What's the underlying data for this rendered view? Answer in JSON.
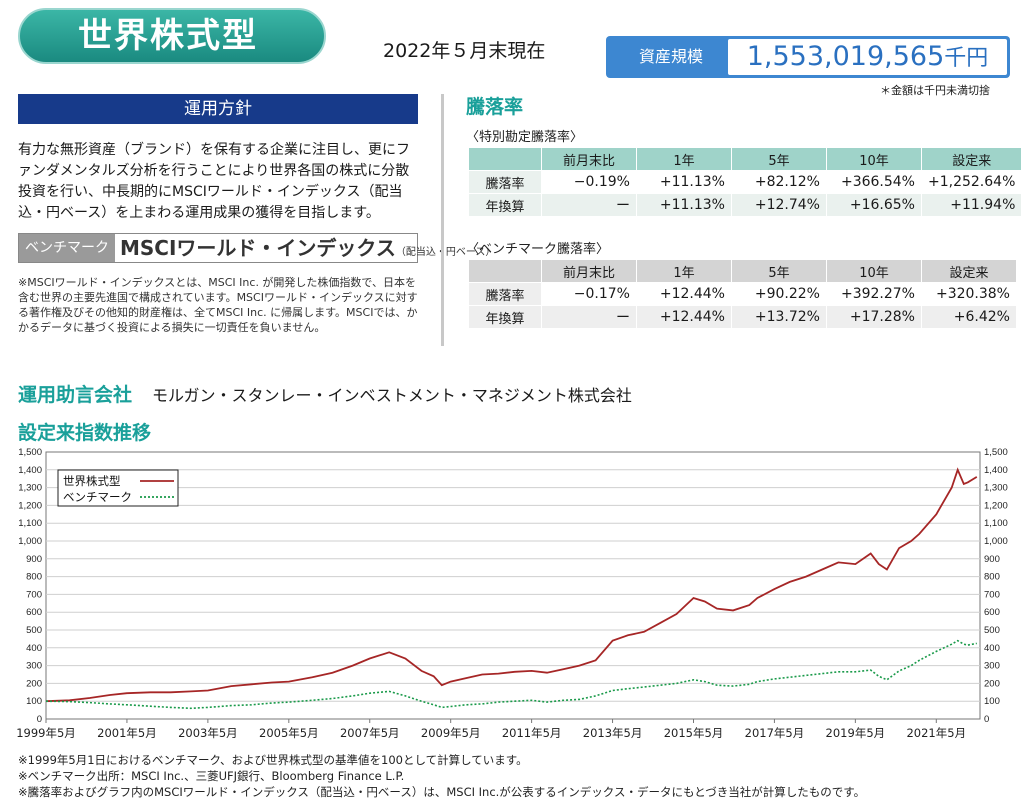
{
  "fund_name": "世界株式型",
  "as_of": "2022年５月末現在",
  "assets": {
    "label": "資産規模",
    "value": "1,553,019,565",
    "unit": "千円",
    "note": "＊金額は千円未満切捨"
  },
  "policy": {
    "title": "運用方針",
    "text": "有力な無形資産（ブランド）を保有する企業に注目し、更にファンダメンタルズ分析を行うことにより世界各国の株式に分散投資を行い、中長期的にMSCIワールド・インデックス（配当込・円ベース）を上まわる運用成果の獲得を目指します。",
    "bench_label": "ベンチマーク",
    "bench_name": "MSCIワールド・インデックス",
    "bench_sub": "（配当込・円ベース）",
    "msci_note": "※MSCIワールド・インデックスとは、MSCI Inc. が開発した株価指数で、日本を含む世界の主要先進国で構成されています。MSCIワールド・インデックスに対する著作権及びその他知的財産権は、全てMSCI Inc. に帰属します。MSCIでは、かかるデータに基づく投資による損失に一切責任を負いません。"
  },
  "performance": {
    "title": "騰落率",
    "headers": [
      "",
      "前月末比",
      "1年",
      "5年",
      "10年",
      "設定来"
    ],
    "fund": {
      "subtitle": "〈特別勘定騰落率〉",
      "rows": [
        [
          "騰落率",
          "−0.19%",
          "+11.13%",
          "+82.12%",
          "+366.54%",
          "+1,252.64%"
        ],
        [
          "年換算",
          "ー",
          "+11.13%",
          "+12.74%",
          "+16.65%",
          "+11.94%"
        ]
      ]
    },
    "bench": {
      "subtitle": "〈ベンチマーク騰落率〉",
      "rows": [
        [
          "騰落率",
          "−0.17%",
          "+12.44%",
          "+90.22%",
          "+392.27%",
          "+320.38%"
        ],
        [
          "年換算",
          "ー",
          "+12.44%",
          "+13.72%",
          "+17.28%",
          "+6.42%"
        ]
      ]
    }
  },
  "advisor": {
    "label": "運用助言会社",
    "name": "モルガン・スタンレー・インベストメント・マネジメント株式会社"
  },
  "chart_title": "設定来指数推移",
  "colors": {
    "fund": "#a62626",
    "bench": "#1a9a4a",
    "teal": "#1aa09a",
    "navy": "#173a8a",
    "blue": "#3d87d1",
    "head_teal": "#9fd3c9",
    "header_gray": "#d4d4d4",
    "row_bg": "#eaf1ee",
    "row_bg2": "#eeeeee"
  },
  "chart_data": {
    "type": "line",
    "title": "設定来指数推移",
    "xlabel": "",
    "ylabel": "",
    "x_ticks": [
      "1999年5月",
      "2001年5月",
      "2003年5月",
      "2005年5月",
      "2007年5月",
      "2009年5月",
      "2011年5月",
      "2013年5月",
      "2015年5月",
      "2017年5月",
      "2019年5月",
      "2021年5月"
    ],
    "y_ticks": [
      "0",
      "100",
      "200",
      "300",
      "400",
      "500",
      "600",
      "700",
      "800",
      "900",
      "1,000",
      "1,100",
      "1,200",
      "1,300",
      "1,400",
      "1,500"
    ],
    "ylim": [
      0,
      1500
    ],
    "grid": true,
    "legend_position": "top-left",
    "series": [
      {
        "name": "世界株式型",
        "x": [
          1999.42,
          2000.0,
          2000.5,
          2001.0,
          2001.42,
          2002.0,
          2002.5,
          2003.0,
          2003.42,
          2004.0,
          2004.5,
          2005.0,
          2005.42,
          2006.0,
          2006.5,
          2007.0,
          2007.42,
          2007.9,
          2008.3,
          2008.7,
          2009.0,
          2009.2,
          2009.42,
          2009.8,
          2010.2,
          2010.6,
          2011.0,
          2011.42,
          2011.8,
          2012.2,
          2012.6,
          2013.0,
          2013.42,
          2013.8,
          2014.2,
          2014.6,
          2015.0,
          2015.42,
          2015.7,
          2016.0,
          2016.4,
          2016.8,
          2017.0,
          2017.42,
          2017.8,
          2018.2,
          2018.6,
          2019.0,
          2019.42,
          2019.8,
          2020.0,
          2020.2,
          2020.5,
          2020.8,
          2021.0,
          2021.42,
          2021.8,
          2021.95,
          2022.1,
          2022.2,
          2022.42
        ],
        "y": [
          100,
          105,
          118,
          135,
          145,
          150,
          150,
          155,
          160,
          185,
          195,
          205,
          210,
          235,
          260,
          300,
          340,
          375,
          340,
          270,
          240,
          190,
          210,
          230,
          250,
          255,
          265,
          270,
          260,
          280,
          300,
          330,
          440,
          470,
          490,
          540,
          590,
          680,
          660,
          620,
          610,
          640,
          680,
          730,
          770,
          800,
          840,
          880,
          870,
          930,
          870,
          840,
          960,
          1000,
          1040,
          1150,
          1300,
          1400,
          1320,
          1330,
          1360
        ]
      },
      {
        "name": "ベンチマーク",
        "x": [
          1999.42,
          2000.0,
          2000.5,
          2001.0,
          2001.42,
          2002.0,
          2002.5,
          2003.0,
          2003.42,
          2004.0,
          2004.5,
          2005.0,
          2005.42,
          2006.0,
          2006.5,
          2007.0,
          2007.42,
          2007.9,
          2008.3,
          2008.7,
          2009.0,
          2009.2,
          2009.42,
          2009.8,
          2010.2,
          2010.6,
          2011.0,
          2011.42,
          2011.8,
          2012.2,
          2012.6,
          2013.0,
          2013.42,
          2013.8,
          2014.2,
          2014.6,
          2015.0,
          2015.42,
          2015.7,
          2016.0,
          2016.4,
          2016.8,
          2017.0,
          2017.42,
          2017.8,
          2018.2,
          2018.6,
          2019.0,
          2019.42,
          2019.8,
          2020.0,
          2020.2,
          2020.5,
          2020.8,
          2021.0,
          2021.42,
          2021.8,
          2021.95,
          2022.1,
          2022.2,
          2022.42
        ],
        "y": [
          100,
          98,
          92,
          85,
          80,
          72,
          65,
          60,
          65,
          75,
          80,
          90,
          95,
          105,
          115,
          130,
          145,
          155,
          130,
          100,
          80,
          65,
          70,
          80,
          85,
          95,
          100,
          105,
          95,
          105,
          110,
          130,
          160,
          170,
          180,
          190,
          200,
          220,
          210,
          190,
          185,
          195,
          210,
          225,
          235,
          245,
          255,
          265,
          265,
          275,
          240,
          220,
          270,
          300,
          330,
          380,
          420,
          440,
          420,
          415,
          425
        ]
      }
    ]
  },
  "footnotes": [
    "※1999年5月1日におけるベンチマーク、および世界株式型の基準値を100として計算しています。",
    "※ベンチマーク出所：MSCI Inc.、三菱UFJ銀行、Bloomberg Finance L.P.",
    "※騰落率およびグラフ内のMSCIワールド・インデックス（配当込・円ベース）は、MSCI Inc.が公表するインデックス・データにもとづき当社が計算したものです。"
  ]
}
